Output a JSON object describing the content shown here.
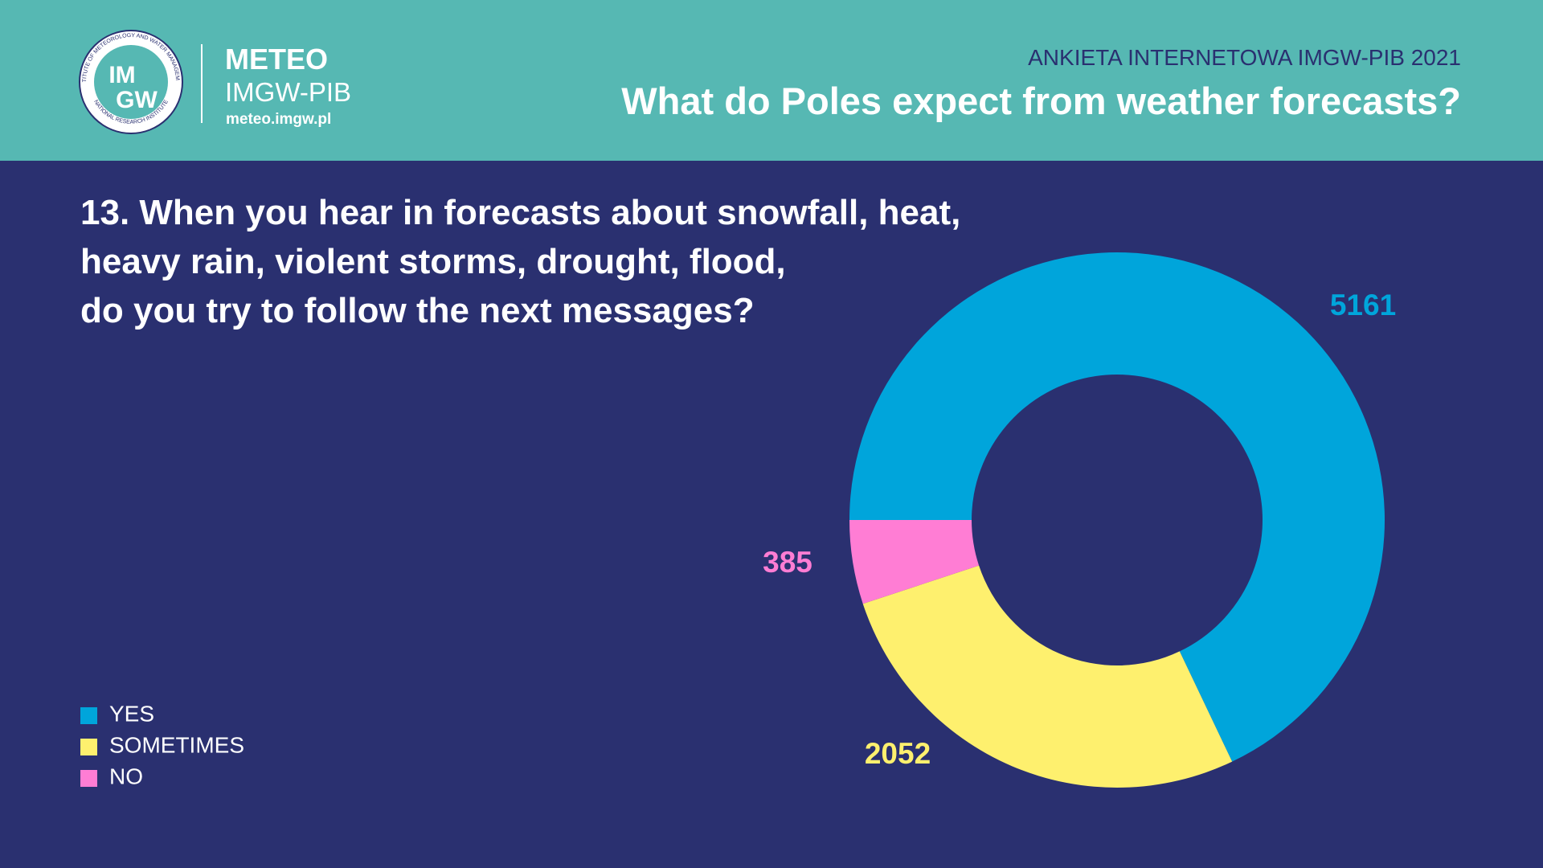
{
  "header": {
    "logo_ring_top": "INSTITUTE OF METEOROLOGY AND WATER MANAGEMENT",
    "logo_ring_bottom": "NATIONAL RESEARCH INSTITUTE",
    "logo_im": "IM",
    "logo_gw": "GW",
    "brand": "METEO",
    "brand_sub": "IMGW-PIB",
    "url": "meteo.imgw.pl",
    "survey": "ANKIETA INTERNETOWA IMGW-PIB 2021",
    "title": "What do Poles expect from weather forecasts?"
  },
  "chart_data": {
    "type": "donut",
    "title": [
      "13. When you hear in forecasts about snowfall, heat,",
      "heavy rain, violent storms, drought, flood,",
      "do you try to follow the next messages?"
    ],
    "categories": [
      "YES",
      "SOMETIMES",
      "NO"
    ],
    "values": [
      5161,
      2052,
      385
    ],
    "colors": [
      "#00a5db",
      "#fef06e",
      "#ff7dd4"
    ],
    "legend": "bottom-left"
  }
}
